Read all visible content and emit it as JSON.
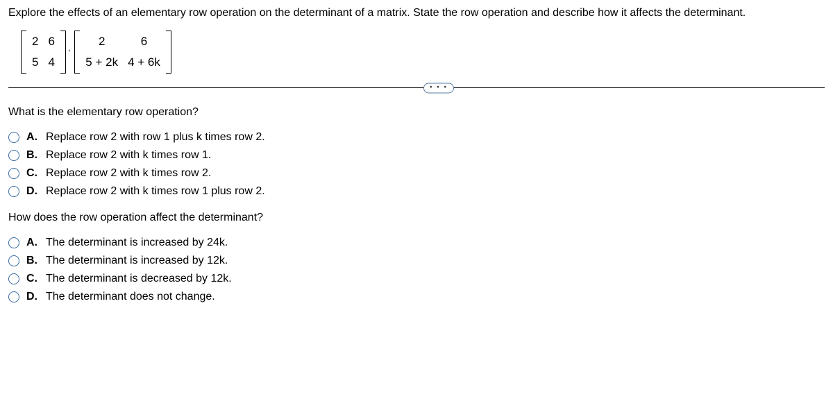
{
  "prompt": "Explore the effects of an elementary row operation on the determinant of a matrix. State the row operation and describe how it affects the determinant.",
  "matrix1": {
    "r1c1": "2",
    "r1c2": "6",
    "r2c1": "5",
    "r2c2": "4"
  },
  "matrix2": {
    "r1c1": "2",
    "r1c2": "6",
    "r2c1": "5 + 2k",
    "r2c2": "4 + 6k"
  },
  "separator": ",",
  "dots": "• • •",
  "q1": {
    "text": "What is the elementary row operation?",
    "options": [
      {
        "letter": "A.",
        "text": "Replace row 2 with row 1 plus k times row 2."
      },
      {
        "letter": "B.",
        "text": "Replace row 2 with k times row 1."
      },
      {
        "letter": "C.",
        "text": "Replace row 2 with k times row 2."
      },
      {
        "letter": "D.",
        "text": "Replace row 2 with k times row 1 plus row 2."
      }
    ]
  },
  "q2": {
    "text": "How does the row operation affect the determinant?",
    "options": [
      {
        "letter": "A.",
        "text": "The determinant is increased by 24k."
      },
      {
        "letter": "B.",
        "text": "The determinant is increased by 12k."
      },
      {
        "letter": "C.",
        "text": "The determinant is decreased by 12k."
      },
      {
        "letter": "D.",
        "text": "The determinant does not change."
      }
    ]
  }
}
